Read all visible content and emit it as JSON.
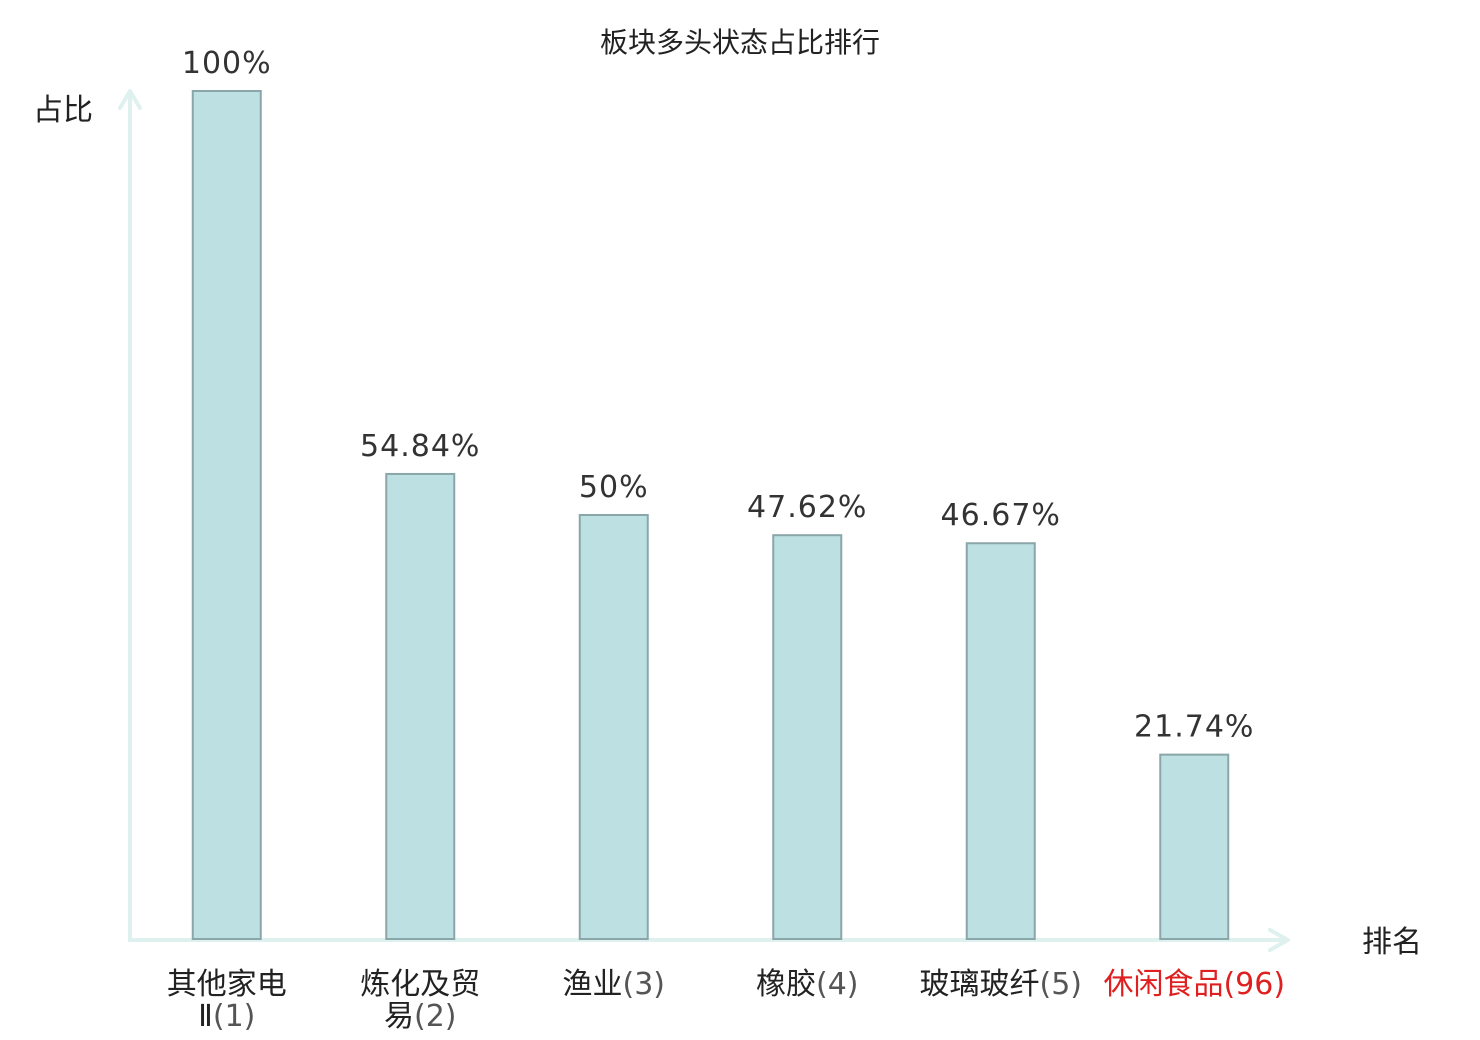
{
  "chart_data": {
    "type": "bar",
    "title": "板块多头状态占比排行",
    "ylabel": "占比",
    "xlabel": "排名",
    "ylim": [
      0,
      100
    ],
    "grid": false,
    "categories": [
      {
        "name": "其他家电",
        "name2": "Ⅱ",
        "rank": "(1)",
        "highlight": false
      },
      {
        "name": "炼化及贸",
        "name2": "易",
        "rank": "(2)",
        "highlight": false
      },
      {
        "name": "渔业",
        "name2": "",
        "rank": "(3)",
        "highlight": false
      },
      {
        "name": "橡胶",
        "name2": "",
        "rank": "(4)",
        "highlight": false
      },
      {
        "name": "玻璃玻纤",
        "name2": "",
        "rank": "(5)",
        "highlight": false
      },
      {
        "name": "休闲食品",
        "name2": "",
        "rank": "(96)",
        "highlight": true
      }
    ],
    "values": [
      100,
      54.84,
      50,
      47.62,
      46.67,
      21.74
    ],
    "value_labels": [
      "100%",
      "54.84%",
      "50%",
      "47.62%",
      "46.67%",
      "21.74%"
    ]
  },
  "colors": {
    "bar_fill": "#bde0e2",
    "bar_stroke": "#8aa6a8",
    "axis": "#dff1ef",
    "label_text": "#222222",
    "rank_text": "#555555",
    "highlight_text": "#e02020",
    "value_text": "#333333"
  }
}
